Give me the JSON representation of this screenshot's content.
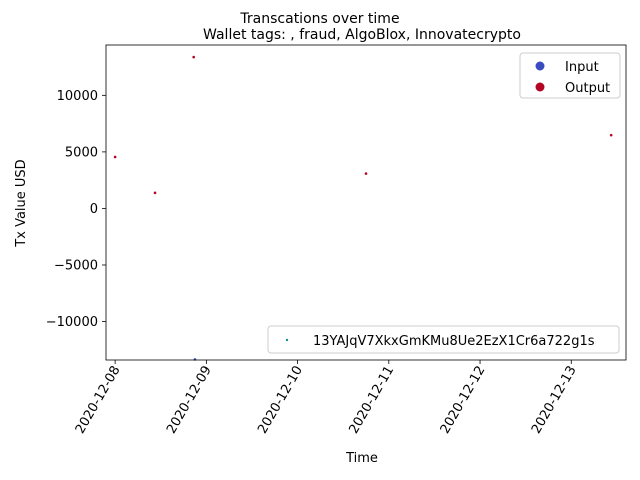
{
  "suptitle": "Transcations over time",
  "chart_data": {
    "type": "scatter",
    "title": "Wallet tags: , fraud, AlgoBlox, Innovatecrypto",
    "xlabel": "Time",
    "ylabel": "Tx Value USD",
    "x_ticks": [
      "2020-12-08",
      "2020-12-09",
      "2020-12-10",
      "2020-12-11",
      "2020-12-12",
      "2020-12-13"
    ],
    "x_range": [
      "2020-12-07T21:36",
      "2020-12-13T14:24"
    ],
    "y_ticks": [
      -10000,
      -5000,
      0,
      5000,
      10000
    ],
    "y_tick_labels": [
      "−10000",
      "−5000",
      "0",
      "5000",
      "10000"
    ],
    "ylim": [
      -13400,
      14450
    ],
    "series": [
      {
        "name": "Input",
        "color": "#3b4cc0",
        "points": [
          {
            "x": "2020-12-08T21:00",
            "y": -13350
          }
        ]
      },
      {
        "name": "Output",
        "color": "#b40426",
        "points": [
          {
            "x": "2020-12-08T00:00",
            "y": 4550
          },
          {
            "x": "2020-12-08T10:30",
            "y": 1380
          },
          {
            "x": "2020-12-08T20:40",
            "y": 13380
          },
          {
            "x": "2020-12-10T18:00",
            "y": 3080
          },
          {
            "x": "2020-12-13T10:30",
            "y": 6480
          }
        ]
      }
    ],
    "legend_position": "upper right",
    "address_legend": {
      "label": "13YAJqV7XkxGmKMu8Ue2EzX1Cr6a722g1s",
      "color": "#1a8a8a",
      "position": "lower right"
    },
    "grid": false
  }
}
